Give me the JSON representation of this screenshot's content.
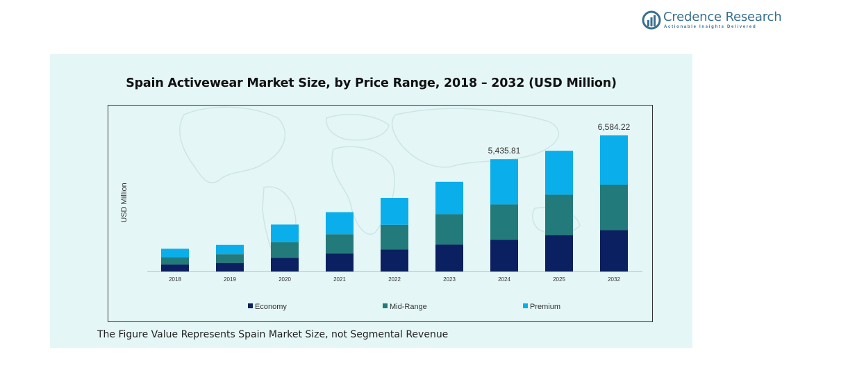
{
  "brand": {
    "name": "Credence Research",
    "tagline": "Actionable Insights Delivered",
    "color": "#3a6f8f"
  },
  "footnote": "The Figure Value Represents Spain Market Size, not Segmental Revenue",
  "colors": {
    "panel": "#e5f6f6",
    "economy": "#0b2060",
    "mid_range": "#237a7a",
    "premium": "#0aaeea"
  },
  "chart_data": {
    "type": "bar",
    "stacked": true,
    "title": "Spain Activewear Market Size, by Price Range, 2018 – 2032 (USD Million)",
    "xlabel": "",
    "ylabel": "USD Million",
    "ylim": [
      0,
      7000
    ],
    "grid": false,
    "legend_position": "bottom",
    "categories": [
      "2018",
      "2019",
      "2020",
      "2021",
      "2022",
      "2023",
      "2024",
      "2025",
      "2032"
    ],
    "series": [
      {
        "name": "Economy",
        "color": "#0b2060",
        "values": [
          340,
          415,
          665,
          870,
          1060,
          1305,
          1530,
          1760,
          2000
        ]
      },
      {
        "name": "Mid-Range",
        "color": "#237a7a",
        "values": [
          355,
          420,
          745,
          935,
          1200,
          1470,
          1715,
          1955,
          2200
        ]
      },
      {
        "name": "Premium",
        "color": "#0aaeea",
        "values": [
          405,
          450,
          860,
          1065,
          1300,
          1565,
          2190,
          2125,
          2384
        ]
      }
    ],
    "annotations": [
      {
        "category": "2024",
        "label": "5,435.81"
      },
      {
        "category": "2032",
        "label": "6,584.22"
      }
    ]
  }
}
